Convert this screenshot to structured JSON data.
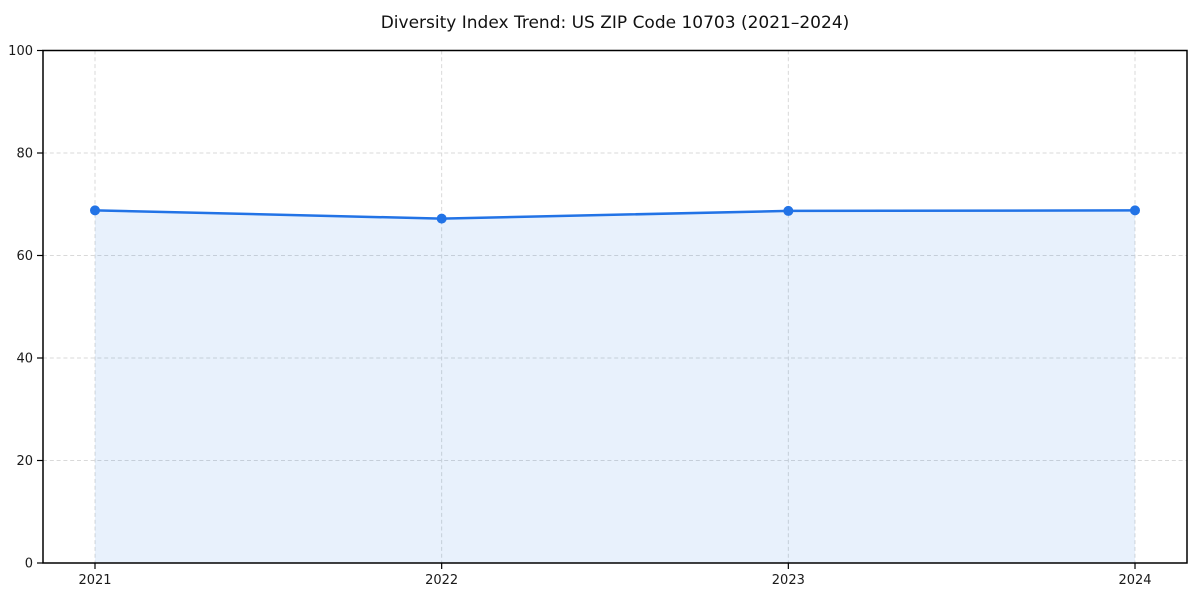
{
  "page": {
    "background": "#ffffff"
  },
  "chart_data": {
    "type": "line",
    "title": "Diversity Index Trend: US ZIP Code 10703 (2021–2024)",
    "categories": [
      "2021",
      "2022",
      "2023",
      "2024"
    ],
    "series": [
      {
        "name": "Diversity Index",
        "values": [
          68.8,
          67.2,
          68.7,
          68.8
        ]
      }
    ],
    "xlabel": "",
    "ylabel": "",
    "ylim": [
      0,
      100
    ],
    "yticks": [
      0,
      20,
      40,
      60,
      80,
      100
    ],
    "grid": true,
    "grid_style": "dashed",
    "legend_position": "none",
    "marker": "circle",
    "area_under_line": true,
    "colors": {
      "line": "#2273e6",
      "marker": "#2273e6",
      "area_fill": "#2273e6",
      "area_opacity": 0.1,
      "grid": "#d9d9d9",
      "axis": "#000000",
      "tick_text": "#1a1a1a",
      "title_text": "#111111"
    }
  }
}
